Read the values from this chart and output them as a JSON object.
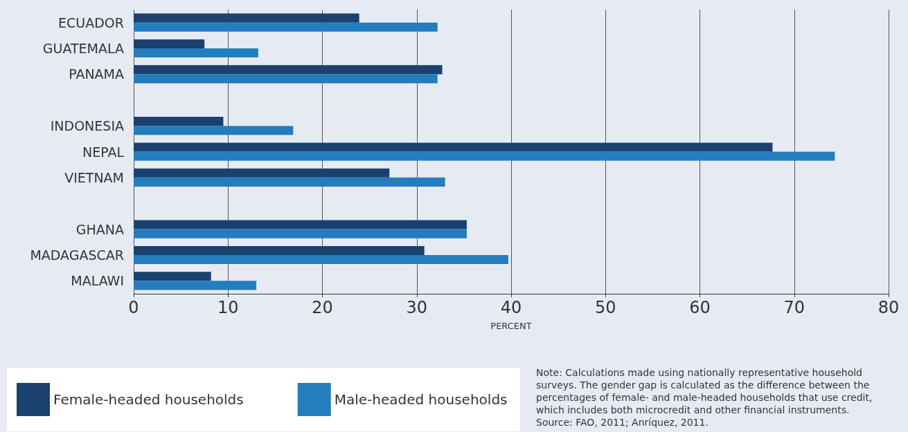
{
  "chart_data": {
    "type": "bar",
    "orientation": "horizontal",
    "xlabel": "PERCENT",
    "categories": [
      "ECUADOR",
      "GUATEMALA",
      "PANAMA",
      null,
      "INDONESIA",
      "NEPAL",
      "VIETNAM",
      null,
      "GHANA",
      "MADAGASCAR",
      "MALAWI"
    ],
    "series": [
      {
        "name": "Female-headed households",
        "color": "#1a416f",
        "values": [
          23.9,
          7.5,
          32.7,
          null,
          9.5,
          67.7,
          27.1,
          null,
          35.3,
          30.8,
          8.2
        ]
      },
      {
        "name": "Male-headed households",
        "color": "#247dbd",
        "values": [
          32.2,
          13.2,
          32.2,
          null,
          16.9,
          74.3,
          33.0,
          null,
          35.3,
          39.7,
          13.0
        ]
      }
    ],
    "xlim": [
      0,
      80
    ],
    "xticks": [
      0,
      10,
      20,
      30,
      40,
      50,
      60,
      70,
      80
    ],
    "grid": "x",
    "legend": "bottom left",
    "annotations": [
      "Note: Calculations made using nationally representative household surveys. The gender gap is calculated as the difference between the percentages of female- and male-headed households that use credit, which includes both microcredit and other financial instruments.",
      "Source: FAO, 2011; Anríquez, 2011."
    ]
  }
}
